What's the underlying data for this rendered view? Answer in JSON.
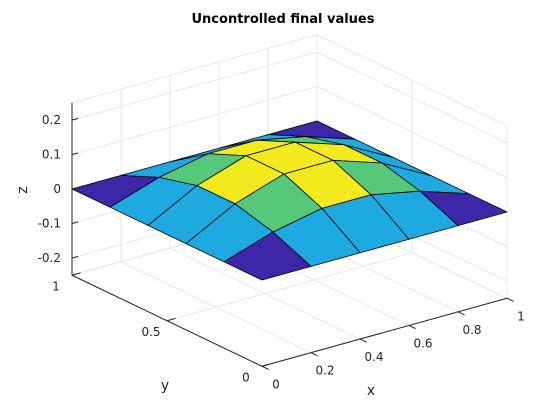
{
  "chart_data": {
    "type": "surface",
    "title": "Uncontrolled final values",
    "xlabel": "x",
    "ylabel": "y",
    "zlabel": "z",
    "xlim": [
      0,
      1
    ],
    "ylim": [
      0,
      1
    ],
    "zlim": [
      -0.25,
      0.25
    ],
    "xticks": [
      0,
      0.2,
      0.4,
      0.6,
      0.8,
      1
    ],
    "yticks": [
      0,
      0.5,
      1
    ],
    "zticks": [
      -0.2,
      -0.1,
      0,
      0.1,
      0.2
    ],
    "xtick_labels": [
      "0",
      "0.2",
      "0.4",
      "0.6",
      "0.8",
      "1"
    ],
    "ytick_labels": [
      "0",
      "0.5",
      "1"
    ],
    "ztick_labels": [
      "-0.2",
      "-0.1",
      "0",
      "0.1",
      "0.2"
    ],
    "grid": true,
    "colormap": "parula",
    "colormap_colors": [
      "#3e26a8",
      "#1ea9e0",
      "#55c87a",
      "#f2ea1c"
    ],
    "x": [
      0,
      0.2,
      0.4,
      0.6,
      0.8,
      1
    ],
    "y": [
      0,
      0.2,
      0.4,
      0.6,
      0.8,
      1
    ],
    "z": [
      [
        0,
        0,
        0,
        0,
        0,
        0
      ],
      [
        0,
        0.047,
        0.076,
        0.076,
        0.047,
        0
      ],
      [
        0,
        0.076,
        0.123,
        0.123,
        0.076,
        0
      ],
      [
        0,
        0.076,
        0.123,
        0.123,
        0.076,
        0
      ],
      [
        0,
        0.047,
        0.076,
        0.076,
        0.047,
        0
      ],
      [
        0,
        0,
        0,
        0,
        0,
        0
      ]
    ]
  }
}
